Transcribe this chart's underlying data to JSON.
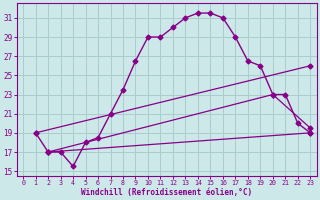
{
  "xlabel": "Windchill (Refroidissement éolien,°C)",
  "background_color": "#cce8e8",
  "grid_color": "#aacccc",
  "line_color": "#880088",
  "xlim": [
    -0.5,
    23.5
  ],
  "ylim": [
    14.5,
    32.5
  ],
  "yticks": [
    15,
    17,
    19,
    21,
    23,
    25,
    27,
    29,
    31
  ],
  "xticks": [
    0,
    1,
    2,
    3,
    4,
    5,
    6,
    7,
    8,
    9,
    10,
    11,
    12,
    13,
    14,
    15,
    16,
    17,
    18,
    19,
    20,
    21,
    22,
    23
  ],
  "curve1_x": [
    1,
    2,
    3,
    4,
    5,
    6,
    7,
    8,
    9,
    10,
    11,
    12,
    13,
    14,
    15,
    16,
    17,
    18,
    19,
    20,
    21,
    22,
    23
  ],
  "curve1_y": [
    19,
    17,
    17,
    15.5,
    18,
    18.5,
    21,
    23.5,
    26.5,
    29,
    29,
    30,
    31,
    31.5,
    31.5,
    31,
    29,
    26.5,
    26,
    23,
    23,
    20,
    19
  ],
  "curve2_x": [
    1,
    23
  ],
  "curve2_y": [
    19,
    26
  ],
  "curve3_x": [
    2,
    20,
    23
  ],
  "curve3_y": [
    17,
    23,
    19.5
  ],
  "curve4_x": [
    2,
    23
  ],
  "curve4_y": [
    17,
    19
  ]
}
